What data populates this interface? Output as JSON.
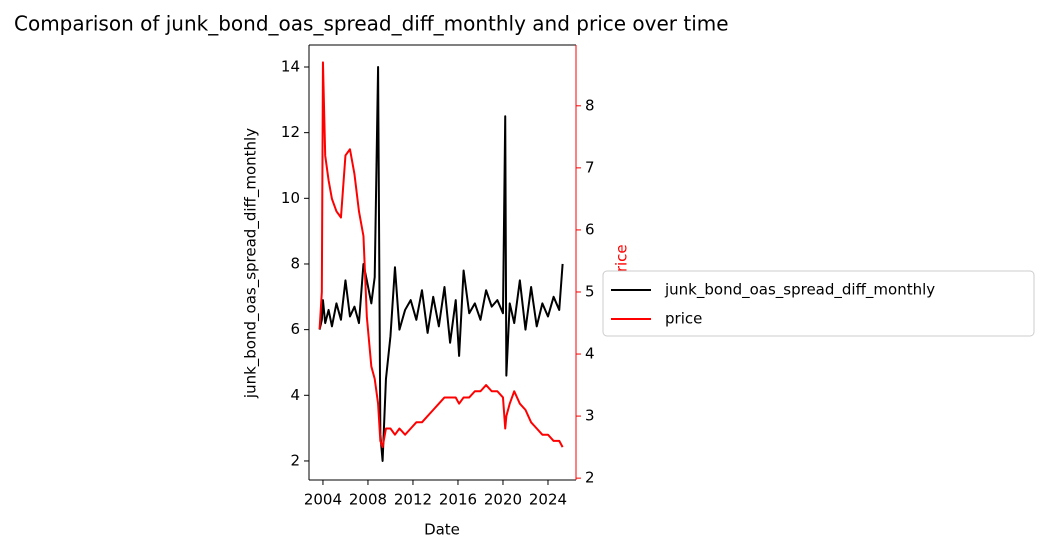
{
  "chart_data": {
    "type": "line",
    "title": "Comparison of junk_bond_oas_spread_diff_monthly and price over time",
    "x_label": "Date",
    "y_label": "junk_bond_oas_spread_diff_monthly",
    "y2_label": "price",
    "y2_label_color": "#ff0000",
    "x": [
      2003.7,
      2003.9,
      2004.0,
      2004.2,
      2004.5,
      2004.8,
      2005.2,
      2005.6,
      2006.0,
      2006.4,
      2006.8,
      2007.2,
      2007.6,
      2007.9,
      2008.3,
      2008.6,
      2008.9,
      2009.1,
      2009.3,
      2009.6,
      2010.0,
      2010.4,
      2010.8,
      2011.3,
      2011.8,
      2012.3,
      2012.8,
      2013.3,
      2013.8,
      2014.3,
      2014.8,
      2015.3,
      2015.8,
      2016.1,
      2016.5,
      2017.0,
      2017.5,
      2018.0,
      2018.5,
      2019.0,
      2019.5,
      2020.0,
      2020.2,
      2020.3,
      2020.6,
      2021.0,
      2021.5,
      2022.0,
      2022.5,
      2023.0,
      2023.5,
      2024.0,
      2024.5,
      2025.0,
      2025.3
    ],
    "series": [
      {
        "name": "junk_bond_oas_spread_diff_monthly",
        "color": "#000000",
        "values": [
          6.0,
          6.3,
          6.9,
          6.2,
          6.6,
          6.1,
          6.8,
          6.3,
          7.5,
          6.4,
          6.7,
          6.2,
          8.0,
          7.5,
          6.8,
          7.6,
          14.0,
          2.8,
          2.0,
          4.5,
          5.8,
          7.9,
          6.0,
          6.6,
          6.9,
          6.3,
          7.2,
          5.9,
          7.0,
          6.1,
          7.3,
          5.6,
          6.9,
          5.2,
          7.8,
          6.5,
          6.8,
          6.3,
          7.2,
          6.7,
          6.9,
          6.5,
          12.5,
          4.6,
          6.8,
          6.2,
          7.5,
          6.0,
          7.3,
          6.1,
          6.8,
          6.4,
          7.0,
          6.6,
          8.0
        ]
      },
      {
        "name": "price",
        "color": "#ff0000",
        "axis": "y2",
        "values": [
          4.4,
          5.0,
          8.7,
          7.2,
          6.8,
          6.5,
          6.3,
          6.2,
          7.2,
          7.3,
          6.9,
          6.3,
          5.9,
          4.6,
          3.8,
          3.6,
          3.2,
          2.6,
          2.5,
          2.8,
          2.8,
          2.7,
          2.8,
          2.7,
          2.8,
          2.9,
          2.9,
          3.0,
          3.1,
          3.2,
          3.3,
          3.3,
          3.3,
          3.2,
          3.3,
          3.3,
          3.4,
          3.4,
          3.5,
          3.4,
          3.4,
          3.3,
          2.8,
          3.0,
          3.2,
          3.4,
          3.2,
          3.1,
          2.9,
          2.8,
          2.7,
          2.7,
          2.6,
          2.6,
          2.5
        ]
      }
    ],
    "xlim": [
      2002.76,
      2026.49
    ],
    "xticks": [
      2004,
      2008,
      2012,
      2016,
      2020,
      2024
    ],
    "ylim": [
      1.42,
      14.67
    ],
    "yticks": [
      2,
      4,
      6,
      8,
      10,
      12,
      14
    ],
    "y2lim": [
      1.97,
      8.98
    ],
    "y2ticks": [
      2,
      3,
      4,
      5,
      6,
      7,
      8
    ],
    "legend": "outside-right"
  }
}
